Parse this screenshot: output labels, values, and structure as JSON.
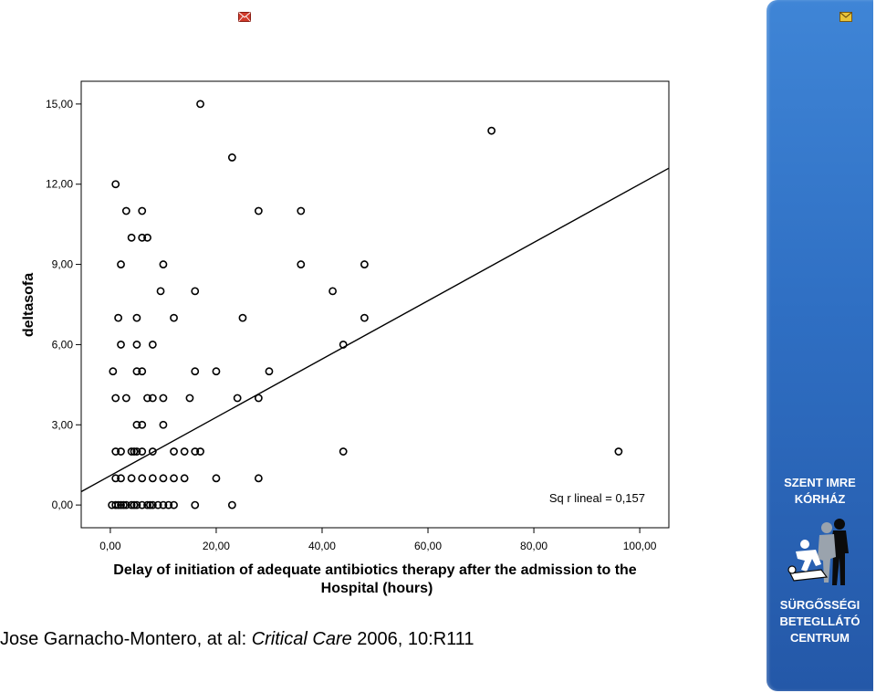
{
  "colors": {
    "sidebar": "#2f6fc3",
    "envelope_left": "#d23b2b",
    "envelope_right": "#e8c43a",
    "points": "#000000"
  },
  "icons": {
    "left": "envelope-icon",
    "right": "envelope-icon",
    "logo": "emergency-rescue-figures-icon"
  },
  "citation": {
    "authors": "Jose Garnacho-Montero, at al: ",
    "journal": "Critical Care",
    "ref": " 2006, 10:R111"
  },
  "sidebar": {
    "line1": "SZENT IMRE",
    "line2": "KÓRHÁZ",
    "line3": "SÜRGŐSSÉGI",
    "line4": "BETEGLLÁTÓ",
    "line5": "CENTRUM"
  },
  "chart_data": {
    "type": "scatter",
    "xlabel_line1": "Delay of initiation of adequate antibiotics therapy after the admission to the",
    "xlabel_line2": "Hospital (hours)",
    "ylabel": "deltasofa",
    "xlim": [
      -5.5,
      105.5
    ],
    "ylim": [
      -0.85,
      15.85
    ],
    "x_ticks": [
      0,
      20,
      40,
      60,
      80,
      100
    ],
    "x_tick_labels": [
      "0,00",
      "20,00",
      "40,00",
      "60,00",
      "80,00",
      "100,00"
    ],
    "y_ticks": [
      0,
      3,
      6,
      9,
      12,
      15
    ],
    "y_tick_labels": [
      "0,00",
      "3,00",
      "6,00",
      "9,00",
      "12,00",
      "15,00"
    ],
    "grid": false,
    "annotation": "Sq r lineal = 0,157",
    "fit_line": {
      "intercept": 1.1,
      "slope": 0.109
    },
    "points": [
      [
        17,
        15
      ],
      [
        72,
        14
      ],
      [
        23,
        13
      ],
      [
        1,
        12
      ],
      [
        3,
        11
      ],
      [
        6,
        11
      ],
      [
        28,
        11
      ],
      [
        36,
        11
      ],
      [
        4,
        10
      ],
      [
        6,
        10
      ],
      [
        7,
        10
      ],
      [
        2,
        9
      ],
      [
        10,
        9
      ],
      [
        36,
        9
      ],
      [
        48,
        9
      ],
      [
        9.5,
        8
      ],
      [
        16,
        8
      ],
      [
        42,
        8
      ],
      [
        1.5,
        7
      ],
      [
        5,
        7
      ],
      [
        12,
        7
      ],
      [
        25,
        7
      ],
      [
        48,
        7
      ],
      [
        2,
        6
      ],
      [
        5,
        6
      ],
      [
        8,
        6
      ],
      [
        44,
        6
      ],
      [
        0.5,
        5
      ],
      [
        5,
        5
      ],
      [
        6,
        5
      ],
      [
        16,
        5
      ],
      [
        20,
        5
      ],
      [
        30,
        5
      ],
      [
        1,
        4
      ],
      [
        3,
        4
      ],
      [
        7,
        4
      ],
      [
        8,
        4
      ],
      [
        10,
        4
      ],
      [
        15,
        4
      ],
      [
        24,
        4
      ],
      [
        28,
        4
      ],
      [
        5,
        3
      ],
      [
        6,
        3
      ],
      [
        10,
        3
      ],
      [
        1,
        2
      ],
      [
        2,
        2
      ],
      [
        4,
        2
      ],
      [
        4.5,
        2
      ],
      [
        5,
        2
      ],
      [
        6,
        2
      ],
      [
        8,
        2
      ],
      [
        12,
        2
      ],
      [
        14,
        2
      ],
      [
        16,
        2
      ],
      [
        17,
        2
      ],
      [
        44,
        2
      ],
      [
        96,
        2
      ],
      [
        1,
        1
      ],
      [
        2,
        1
      ],
      [
        4,
        1
      ],
      [
        6,
        1
      ],
      [
        8,
        1
      ],
      [
        10,
        1
      ],
      [
        12,
        1
      ],
      [
        14,
        1
      ],
      [
        20,
        1
      ],
      [
        28,
        1
      ],
      [
        0.3,
        0
      ],
      [
        1,
        0
      ],
      [
        1.5,
        0
      ],
      [
        2,
        0
      ],
      [
        2.5,
        0
      ],
      [
        3,
        0
      ],
      [
        4,
        0
      ],
      [
        4.5,
        0
      ],
      [
        5,
        0
      ],
      [
        6,
        0
      ],
      [
        7,
        0
      ],
      [
        7.5,
        0
      ],
      [
        8,
        0
      ],
      [
        9,
        0
      ],
      [
        10,
        0
      ],
      [
        11,
        0
      ],
      [
        12,
        0
      ],
      [
        16,
        0
      ],
      [
        23,
        0
      ]
    ]
  }
}
